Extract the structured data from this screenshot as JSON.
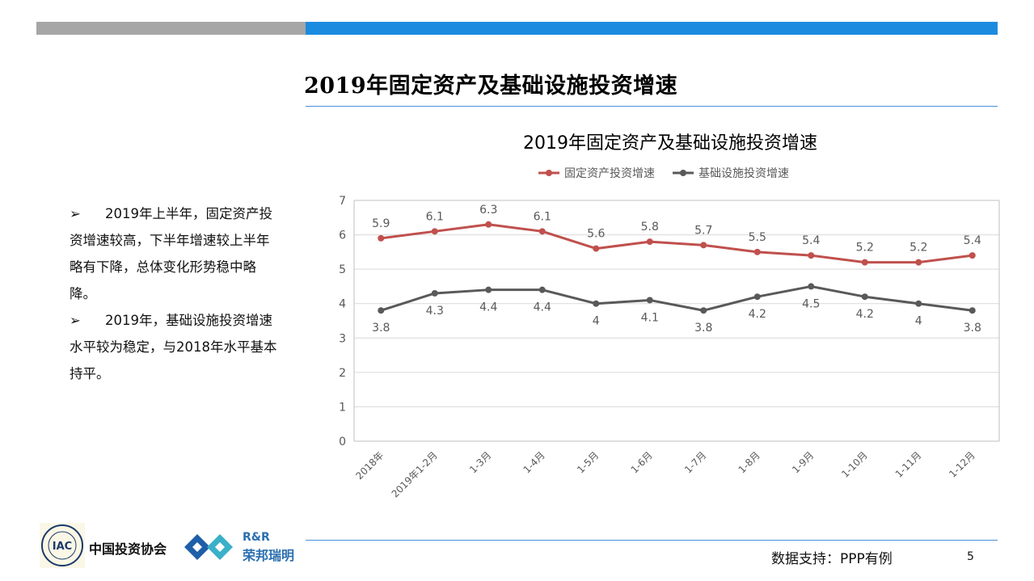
{
  "page": {
    "title": "2019年固定资产及基础设施投资增速",
    "bullets": [
      {
        "marker": "➢",
        "text": "2019年上半年，固定资产投资增速较高，下半年增速较上半年略有下降，总体变化形势稳中略降。"
      },
      {
        "marker": "➢",
        "text": "2019年，基础设施投资增速水平较为稳定，与2018年水平基本持平。"
      }
    ],
    "footer_source": "数据支持：PPP有例",
    "page_number": "5",
    "org_name": "中国投资协会",
    "iac_badge": "IAC",
    "rr_top": "R&R",
    "rr_bottom": "荣邦瑞明"
  },
  "colors": {
    "gray_bar": "#a6a6a6",
    "blue_bar": "#1b8be0",
    "fixed_series": "#c0504d",
    "infra_series": "#595959"
  },
  "chart_data": {
    "type": "line",
    "title": "2019年固定资产及基础设施投资增速",
    "categories": [
      "2018年",
      "2019年1-2月",
      "1-3月",
      "1-4月",
      "1-5月",
      "1-6月",
      "1-7月",
      "1-8月",
      "1-9月",
      "1-10月",
      "1-11月",
      "1-12月"
    ],
    "series": [
      {
        "name": "固定资产投资增速",
        "color": "#c0504d",
        "values": [
          5.9,
          6.1,
          6.3,
          6.1,
          5.6,
          5.8,
          5.7,
          5.5,
          5.4,
          5.2,
          5.2,
          5.4
        ],
        "label_position": "above"
      },
      {
        "name": "基础设施投资增速",
        "color": "#595959",
        "values": [
          3.8,
          4.3,
          4.4,
          4.4,
          4.0,
          4.1,
          3.8,
          4.2,
          4.5,
          4.2,
          4.0,
          3.8
        ],
        "label_position": "below"
      }
    ],
    "data_labels": [
      [
        "5.9",
        "6.1",
        "6.3",
        "6.1",
        "5.6",
        "5.8",
        "5.7",
        "5.5",
        "5.4",
        "5.2",
        "5.2",
        "5.4"
      ],
      [
        "3.8",
        "4.3",
        "4.4",
        "4.4",
        "4",
        "4.1",
        "3.8",
        "4.2",
        "4.5",
        "4.2",
        "4",
        "3.8"
      ]
    ],
    "ylim": [
      0,
      7
    ],
    "yticks": [
      "0",
      "1",
      "2",
      "3",
      "4",
      "5",
      "6",
      "7"
    ],
    "grid": true,
    "legend_position": "top"
  }
}
